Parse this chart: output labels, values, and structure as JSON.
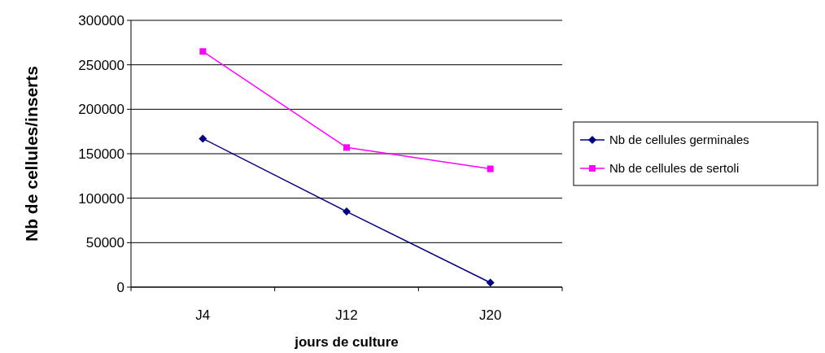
{
  "chart_data": {
    "type": "line",
    "xlabel": "jours de culture",
    "ylabel": "Nb de cellules/inserts",
    "categories": [
      "J4",
      "J12",
      "J20"
    ],
    "series": [
      {
        "name": "Nb de cellules germinales",
        "color": "#000080",
        "marker": "diamond",
        "values": [
          167000,
          85000,
          5000
        ]
      },
      {
        "name": "Nb de cellules de sertoli",
        "color": "#ff00ff",
        "marker": "square",
        "values": [
          265000,
          157000,
          133000
        ]
      }
    ],
    "ylim": [
      0,
      300000
    ],
    "yticks": [
      0,
      50000,
      100000,
      150000,
      200000,
      250000,
      300000
    ],
    "grid": "y",
    "legend": "right"
  }
}
